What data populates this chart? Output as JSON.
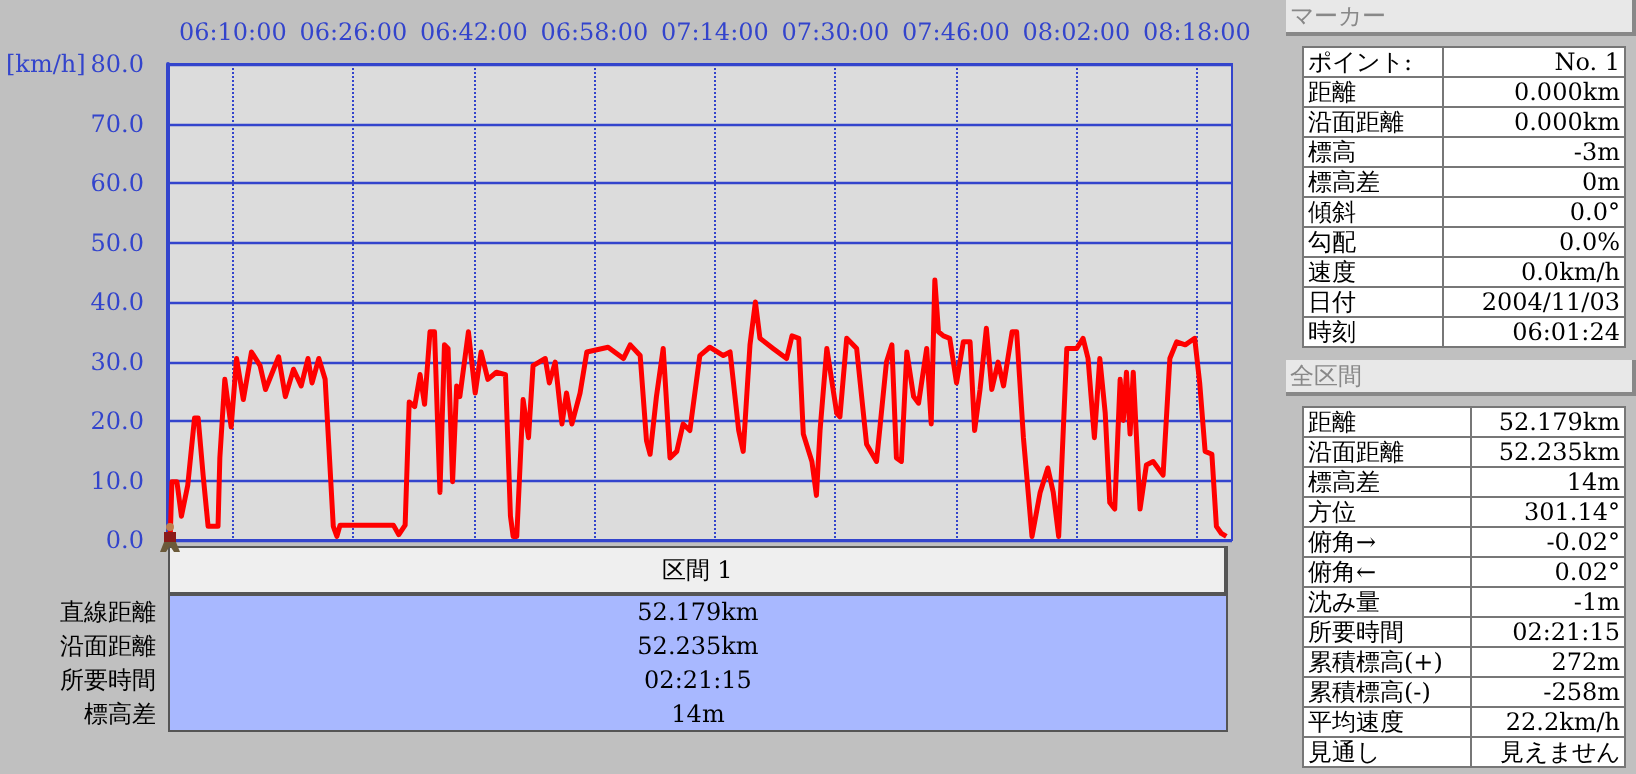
{
  "chart_data": [
    {
      "type": "line",
      "ylabel": "[km/h]",
      "grid": true,
      "xlim": [
        6.0233,
        8.3775
      ],
      "xticks": [
        {
          "value": 6.1667,
          "label": "06:10:00"
        },
        {
          "value": 6.4333,
          "label": "06:26:00"
        },
        {
          "value": 6.7,
          "label": "06:42:00"
        },
        {
          "value": 6.9667,
          "label": "06:58:00"
        },
        {
          "value": 7.2333,
          "label": "07:14:00"
        },
        {
          "value": 7.5,
          "label": "07:30:00"
        },
        {
          "value": 7.7667,
          "label": "07:46:00"
        },
        {
          "value": 8.0333,
          "label": "08:02:00"
        },
        {
          "value": 8.3,
          "label": "08:18:00"
        }
      ],
      "ylim": [
        0,
        80
      ],
      "yticks": [
        {
          "value": 0,
          "label": "0.0"
        },
        {
          "value": 10,
          "label": "10.0"
        },
        {
          "value": 20,
          "label": "20.0"
        },
        {
          "value": 30,
          "label": "30.0"
        },
        {
          "value": 40,
          "label": "40.0"
        },
        {
          "value": 50,
          "label": "50.0"
        },
        {
          "value": 60,
          "label": "60.0"
        },
        {
          "value": 70,
          "label": "70.0"
        },
        {
          "value": 80,
          "label": "80.0"
        }
      ],
      "x": [
        6.028,
        6.032,
        6.043,
        6.053,
        6.067,
        6.082,
        6.09,
        6.101,
        6.112,
        6.134,
        6.138,
        6.149,
        6.163,
        6.175,
        6.19,
        6.208,
        6.227,
        6.239,
        6.268,
        6.283,
        6.301,
        6.318,
        6.333,
        6.342,
        6.357,
        6.371,
        6.389,
        6.397,
        6.404,
        6.522,
        6.534,
        6.548,
        6.557,
        6.569,
        6.581,
        6.591,
        6.603,
        6.613,
        6.625,
        6.635,
        6.643,
        6.653,
        6.662,
        6.669,
        6.688,
        6.703,
        6.716,
        6.731,
        6.75,
        6.77,
        6.781,
        6.787,
        6.795,
        6.809,
        6.821,
        6.831,
        6.858,
        6.867,
        6.88,
        6.895,
        6.905,
        6.917,
        6.935,
        6.95,
        6.997,
        7.031,
        7.046,
        7.068,
        7.082,
        7.09,
        7.104,
        7.119,
        7.134,
        7.149,
        7.163,
        7.178,
        7.2,
        7.222,
        7.252,
        7.267,
        7.286,
        7.296,
        7.311,
        7.323,
        7.333,
        7.362,
        7.392,
        7.404,
        7.419,
        7.429,
        7.448,
        7.458,
        7.466,
        7.481,
        7.503,
        7.51,
        7.525,
        7.547,
        7.569,
        7.591,
        7.613,
        7.625,
        7.635,
        7.646,
        7.658,
        7.673,
        7.684,
        7.702,
        7.712,
        7.72,
        7.728,
        7.739,
        7.753,
        7.768,
        7.783,
        7.798,
        7.808,
        7.82,
        7.834,
        7.846,
        7.86,
        7.872,
        7.891,
        7.901,
        7.916,
        7.935,
        7.953,
        7.97,
        7.982,
        7.994,
        8.012,
        8.034,
        8.048,
        8.059,
        8.073,
        8.085,
        8.097,
        8.107,
        8.118,
        8.13,
        8.137,
        8.144,
        8.152,
        8.159,
        8.174,
        8.188,
        8.203,
        8.225,
        8.24,
        8.255,
        8.274,
        8.295,
        8.306,
        8.318,
        8.333,
        8.343,
        8.354,
        8.365
      ],
      "series": [
        {
          "color": "#ff0000",
          "values": [
            0,
            9.8,
            9.8,
            4.0,
            9.2,
            20.5,
            20.5,
            10.9,
            2.3,
            2.3,
            13.8,
            27,
            19,
            30.5,
            23.6,
            31.6,
            29.3,
            25.3,
            30.8,
            24.1,
            28.7,
            25.9,
            30.5,
            26.4,
            30.5,
            27,
            2.3,
            0.6,
            2.5,
            2.5,
            0.9,
            2.5,
            23.2,
            22.4,
            27.8,
            22.8,
            35,
            35,
            8,
            32.8,
            32.2,
            9.8,
            25.9,
            24.1,
            35,
            24.7,
            31.6,
            27,
            28.2,
            27.8,
            4,
            0.6,
            0.6,
            23.6,
            17.2,
            29.3,
            30.5,
            26.4,
            29.9,
            19.5,
            24.7,
            19.5,
            24.7,
            31.6,
            32.4,
            30.5,
            32.8,
            31,
            16.7,
            14.4,
            24.1,
            32.2,
            13.8,
            14.9,
            19.5,
            18.4,
            31,
            32.4,
            31,
            31.6,
            18.4,
            14.9,
            32.8,
            40,
            33.9,
            32.2,
            30.5,
            34.3,
            33.9,
            17.8,
            13.2,
            7.5,
            18.4,
            32.2,
            21.3,
            20.7,
            33.9,
            32.2,
            16.1,
            13.2,
            29.9,
            32.8,
            13.8,
            13.2,
            31.6,
            24.1,
            23,
            32.2,
            19.5,
            43.7,
            35,
            34.3,
            33.9,
            26.4,
            33.3,
            33.3,
            18.4,
            25.3,
            35.6,
            25.3,
            29.9,
            25.9,
            35,
            35,
            17.2,
            0.6,
            8,
            12.1,
            8,
            0.6,
            32.2,
            32.2,
            33.9,
            30.5,
            17.2,
            30.5,
            21.3,
            6.3,
            5.2,
            27,
            20.1,
            28.2,
            17.8,
            28.2,
            5.2,
            12.6,
            13.2,
            10.9,
            30.5,
            33.3,
            32.8,
            33.9,
            26.4,
            14.9,
            14.4,
            2.3,
            1.1,
            0.6
          ]
        }
      ]
    },
    {
      "type": "other",
      "title": "マーカー",
      "annotations": [
        "ポイント:",
        "No. 1",
        "距離",
        "0.000km",
        "沿面距離",
        "0.000km",
        "標高",
        "-3m",
        "標高差",
        "0m",
        "傾斜",
        "0.0°",
        "勾配",
        "0.0%",
        "速度",
        "0.0km/h",
        "日付",
        "2004/11/03",
        "時刻",
        "06:01:24"
      ]
    },
    {
      "type": "other",
      "title": "全区間",
      "annotations": [
        "距離",
        "52.179km",
        "沿面距離",
        "52.235km",
        "標高差",
        "14m",
        "方位",
        "301.14°",
        "俯角→",
        "-0.02°",
        "俯角←",
        "0.02°",
        "沈み量",
        "-1m",
        "所要時間",
        "02:21:15",
        "累積標高(+)",
        "272m",
        "累積標高(-)",
        "-258m",
        "平均速度",
        "22.2km/h",
        "見通し",
        "見えません"
      ]
    },
    {
      "type": "other",
      "title": "区間 1",
      "annotations": [
        "直線距離",
        "52.179km",
        "沿面距離",
        "52.235km",
        "所要時間",
        "02:21:15",
        "標高差",
        "14m"
      ]
    }
  ]
}
